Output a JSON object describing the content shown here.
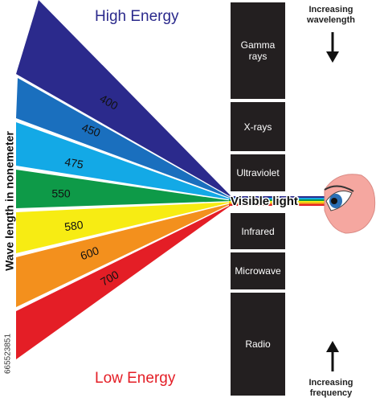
{
  "header": {
    "high_energy": "High Energy",
    "low_energy": "Low Energy"
  },
  "axis_label": "Wave length in nonemeter",
  "wedges": [
    {
      "label": 400,
      "color": "#2b2a8c"
    },
    {
      "label": 450,
      "color": "#1a6fbe"
    },
    {
      "label": 475,
      "color": "#13a9e6"
    },
    {
      "label": 550,
      "color": "#0e9a48"
    },
    {
      "label": 580,
      "color": "#f7ec13"
    },
    {
      "label": 600,
      "color": "#f3901d"
    },
    {
      "label": 700,
      "color": "#e41e26"
    }
  ],
  "spectrum": [
    "Gamma rays",
    "X-rays",
    "Ultraviolet",
    "Infrared",
    "Microwave",
    "Radio"
  ],
  "visible_light": "Visible light",
  "notes": {
    "top": "Increasing wavelength",
    "bottom": "Increasing frequency"
  },
  "watermark": "665523851"
}
